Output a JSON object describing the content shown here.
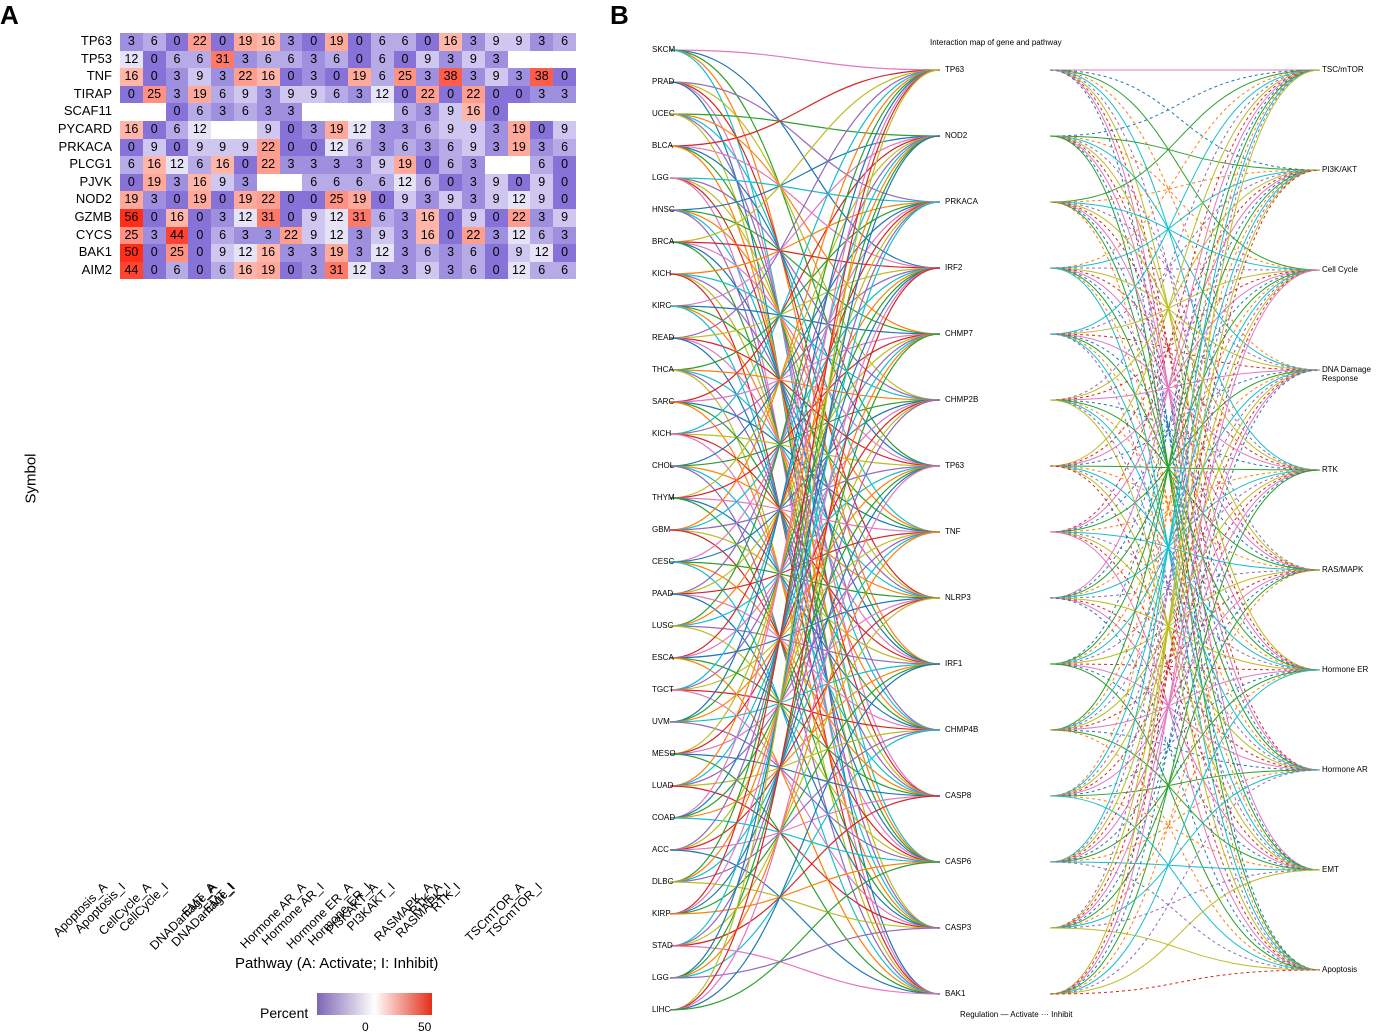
{
  "panels": {
    "a": "A",
    "b": "B"
  },
  "chart_data": [
    {
      "type": "heatmap",
      "ylabel": "Symbol",
      "xlabel": "Pathway (A: Activate; I: Inhibit)",
      "legend_title": "Percent",
      "legend_ticks": [
        "0",
        "50"
      ],
      "columns": [
        "Apoptosis_A",
        "Apoptosis_I",
        "CellCycle_A",
        "CellCycle_I",
        "DNADamage_A",
        "DNADamage_I",
        "EMT_A",
        "EMT_I",
        "Hormone AR_A",
        "Hormone AR_I",
        "Hormone ER_A",
        "Hormone ER_I",
        "PI3KAKT_A",
        "PI3KAKT_I",
        "RASMAPK_A",
        "RASMAPK_I",
        "RTK_A",
        "RTK_I",
        "TSCmTOR_A",
        "TSCmTOR_I"
      ],
      "rows": [
        {
          "symbol": "TP63",
          "values": [
            3,
            6,
            0,
            22,
            0,
            19,
            16,
            3,
            0,
            19,
            0,
            6,
            6,
            0,
            16,
            3,
            9,
            9,
            3,
            6
          ]
        },
        {
          "symbol": "TP53",
          "values": [
            12,
            0,
            6,
            6,
            31,
            3,
            6,
            6,
            3,
            6,
            0,
            6,
            0,
            9,
            3,
            9,
            3,
            null,
            null,
            null
          ]
        },
        {
          "symbol": "TNF",
          "values": [
            16,
            0,
            3,
            9,
            3,
            22,
            16,
            0,
            3,
            0,
            19,
            6,
            25,
            3,
            38,
            3,
            9,
            3,
            38,
            0
          ]
        },
        {
          "symbol": "TIRAP",
          "values": [
            0,
            25,
            3,
            19,
            6,
            9,
            3,
            9,
            9,
            6,
            3,
            12,
            0,
            22,
            0,
            22,
            0,
            0,
            3,
            3
          ]
        },
        {
          "symbol": "SCAF11",
          "values": [
            null,
            null,
            0,
            6,
            3,
            6,
            3,
            3,
            null,
            null,
            null,
            null,
            6,
            3,
            9,
            16,
            0,
            null,
            null,
            null
          ]
        },
        {
          "symbol": "PYCARD",
          "values": [
            16,
            0,
            6,
            12,
            null,
            null,
            9,
            0,
            3,
            19,
            12,
            3,
            3,
            6,
            9,
            9,
            3,
            19,
            0,
            9
          ]
        },
        {
          "symbol": "PRKACA",
          "values": [
            0,
            9,
            0,
            9,
            9,
            9,
            22,
            0,
            0,
            12,
            6,
            3,
            6,
            3,
            6,
            9,
            3,
            19,
            3,
            6
          ]
        },
        {
          "symbol": "PLCG1",
          "values": [
            6,
            16,
            12,
            6,
            16,
            0,
            22,
            3,
            3,
            3,
            3,
            9,
            19,
            0,
            6,
            3,
            null,
            null,
            6,
            0
          ]
        },
        {
          "symbol": "PJVK",
          "values": [
            0,
            19,
            3,
            16,
            9,
            3,
            null,
            null,
            6,
            6,
            6,
            6,
            12,
            6,
            0,
            3,
            9,
            0,
            9,
            0
          ]
        },
        {
          "symbol": "NOD2",
          "values": [
            19,
            3,
            0,
            19,
            0,
            19,
            22,
            0,
            0,
            25,
            19,
            0,
            9,
            3,
            9,
            3,
            9,
            12,
            9,
            0
          ]
        },
        {
          "symbol": "GZMB",
          "values": [
            56,
            0,
            16,
            0,
            3,
            12,
            31,
            0,
            9,
            12,
            31,
            6,
            3,
            16,
            0,
            9,
            0,
            22,
            3,
            9
          ]
        },
        {
          "symbol": "CYCS",
          "values": [
            25,
            3,
            44,
            0,
            6,
            3,
            3,
            22,
            9,
            12,
            3,
            9,
            3,
            16,
            0,
            22,
            3,
            12,
            6,
            3
          ]
        },
        {
          "symbol": "BAK1",
          "values": [
            50,
            0,
            25,
            0,
            9,
            12,
            16,
            3,
            3,
            19,
            3,
            12,
            3,
            6,
            3,
            6,
            0,
            9,
            12,
            0
          ]
        },
        {
          "symbol": "AIM2",
          "values": [
            44,
            0,
            6,
            0,
            6,
            16,
            19,
            0,
            3,
            31,
            12,
            3,
            3,
            9,
            3,
            6,
            0,
            12,
            6,
            6
          ]
        }
      ]
    },
    {
      "type": "network",
      "title": "Interaction map of gene and pathway",
      "left_nodes": [
        "SKCM",
        "PRAD",
        "UCEC",
        "BLCA",
        "LGG",
        "HNSC",
        "BRCA",
        "KICH",
        "KIRC",
        "READ",
        "THCA",
        "SARC",
        "KICH",
        "CHOL",
        "THYM",
        "GBM",
        "CESC",
        "PAAD",
        "LUSC",
        "ESCA",
        "TGCT",
        "UVM",
        "MESO",
        "LUAD",
        "COAD",
        "ACC",
        "DLBC",
        "KIRP",
        "STAD",
        "LGG",
        "LIHC"
      ],
      "gene_nodes": [
        "TP63",
        "NOD2",
        "PRKACA",
        "IRF2",
        "CHMP7",
        "CHMP2B",
        "TP63",
        "TNF",
        "NLRP3",
        "IRF1",
        "CHMP4B",
        "CASP8",
        "CASP6",
        "CASP3",
        "BAK1"
      ],
      "pathway_nodes": [
        "TSC/mTOR",
        "PI3K/AKT",
        "Cell Cycle",
        "DNA Damage Response",
        "RTK",
        "RAS/MAPK",
        "Hormone ER",
        "Hormone AR",
        "EMT",
        "Apoptosis"
      ],
      "legend": "Regulation — Activate ··· Inhibit"
    }
  ]
}
